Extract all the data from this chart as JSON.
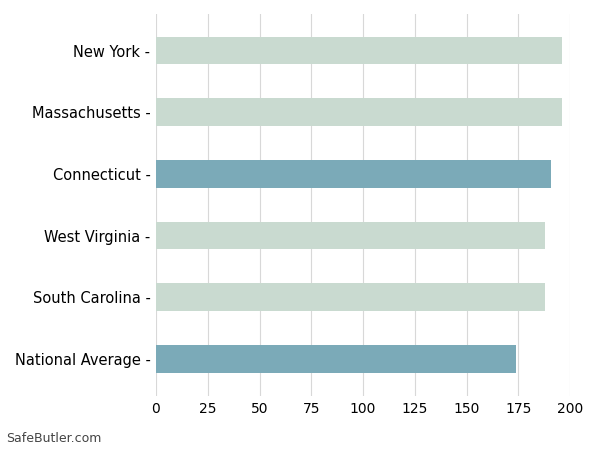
{
  "categories": [
    "National Average",
    "South Carolina",
    "West Virginia",
    "Connecticut",
    "Massachusetts",
    "New York"
  ],
  "values": [
    174,
    188,
    188,
    191,
    196,
    196
  ],
  "bar_colors": [
    "#7BAAB8",
    "#C9DAD0",
    "#C9DAD0",
    "#7BAAB8",
    "#C9DAD0",
    "#C9DAD0"
  ],
  "xlim": [
    0,
    200
  ],
  "xticks": [
    0,
    25,
    50,
    75,
    100,
    125,
    150,
    175,
    200
  ],
  "background_color": "#ffffff",
  "grid_color": "#d8d8d8",
  "watermark": "SafeButler.com",
  "bar_height": 0.45,
  "figsize": [
    6.0,
    4.5
  ],
  "dpi": 100,
  "ytick_fontsize": 10.5,
  "xtick_fontsize": 10,
  "watermark_fontsize": 9
}
